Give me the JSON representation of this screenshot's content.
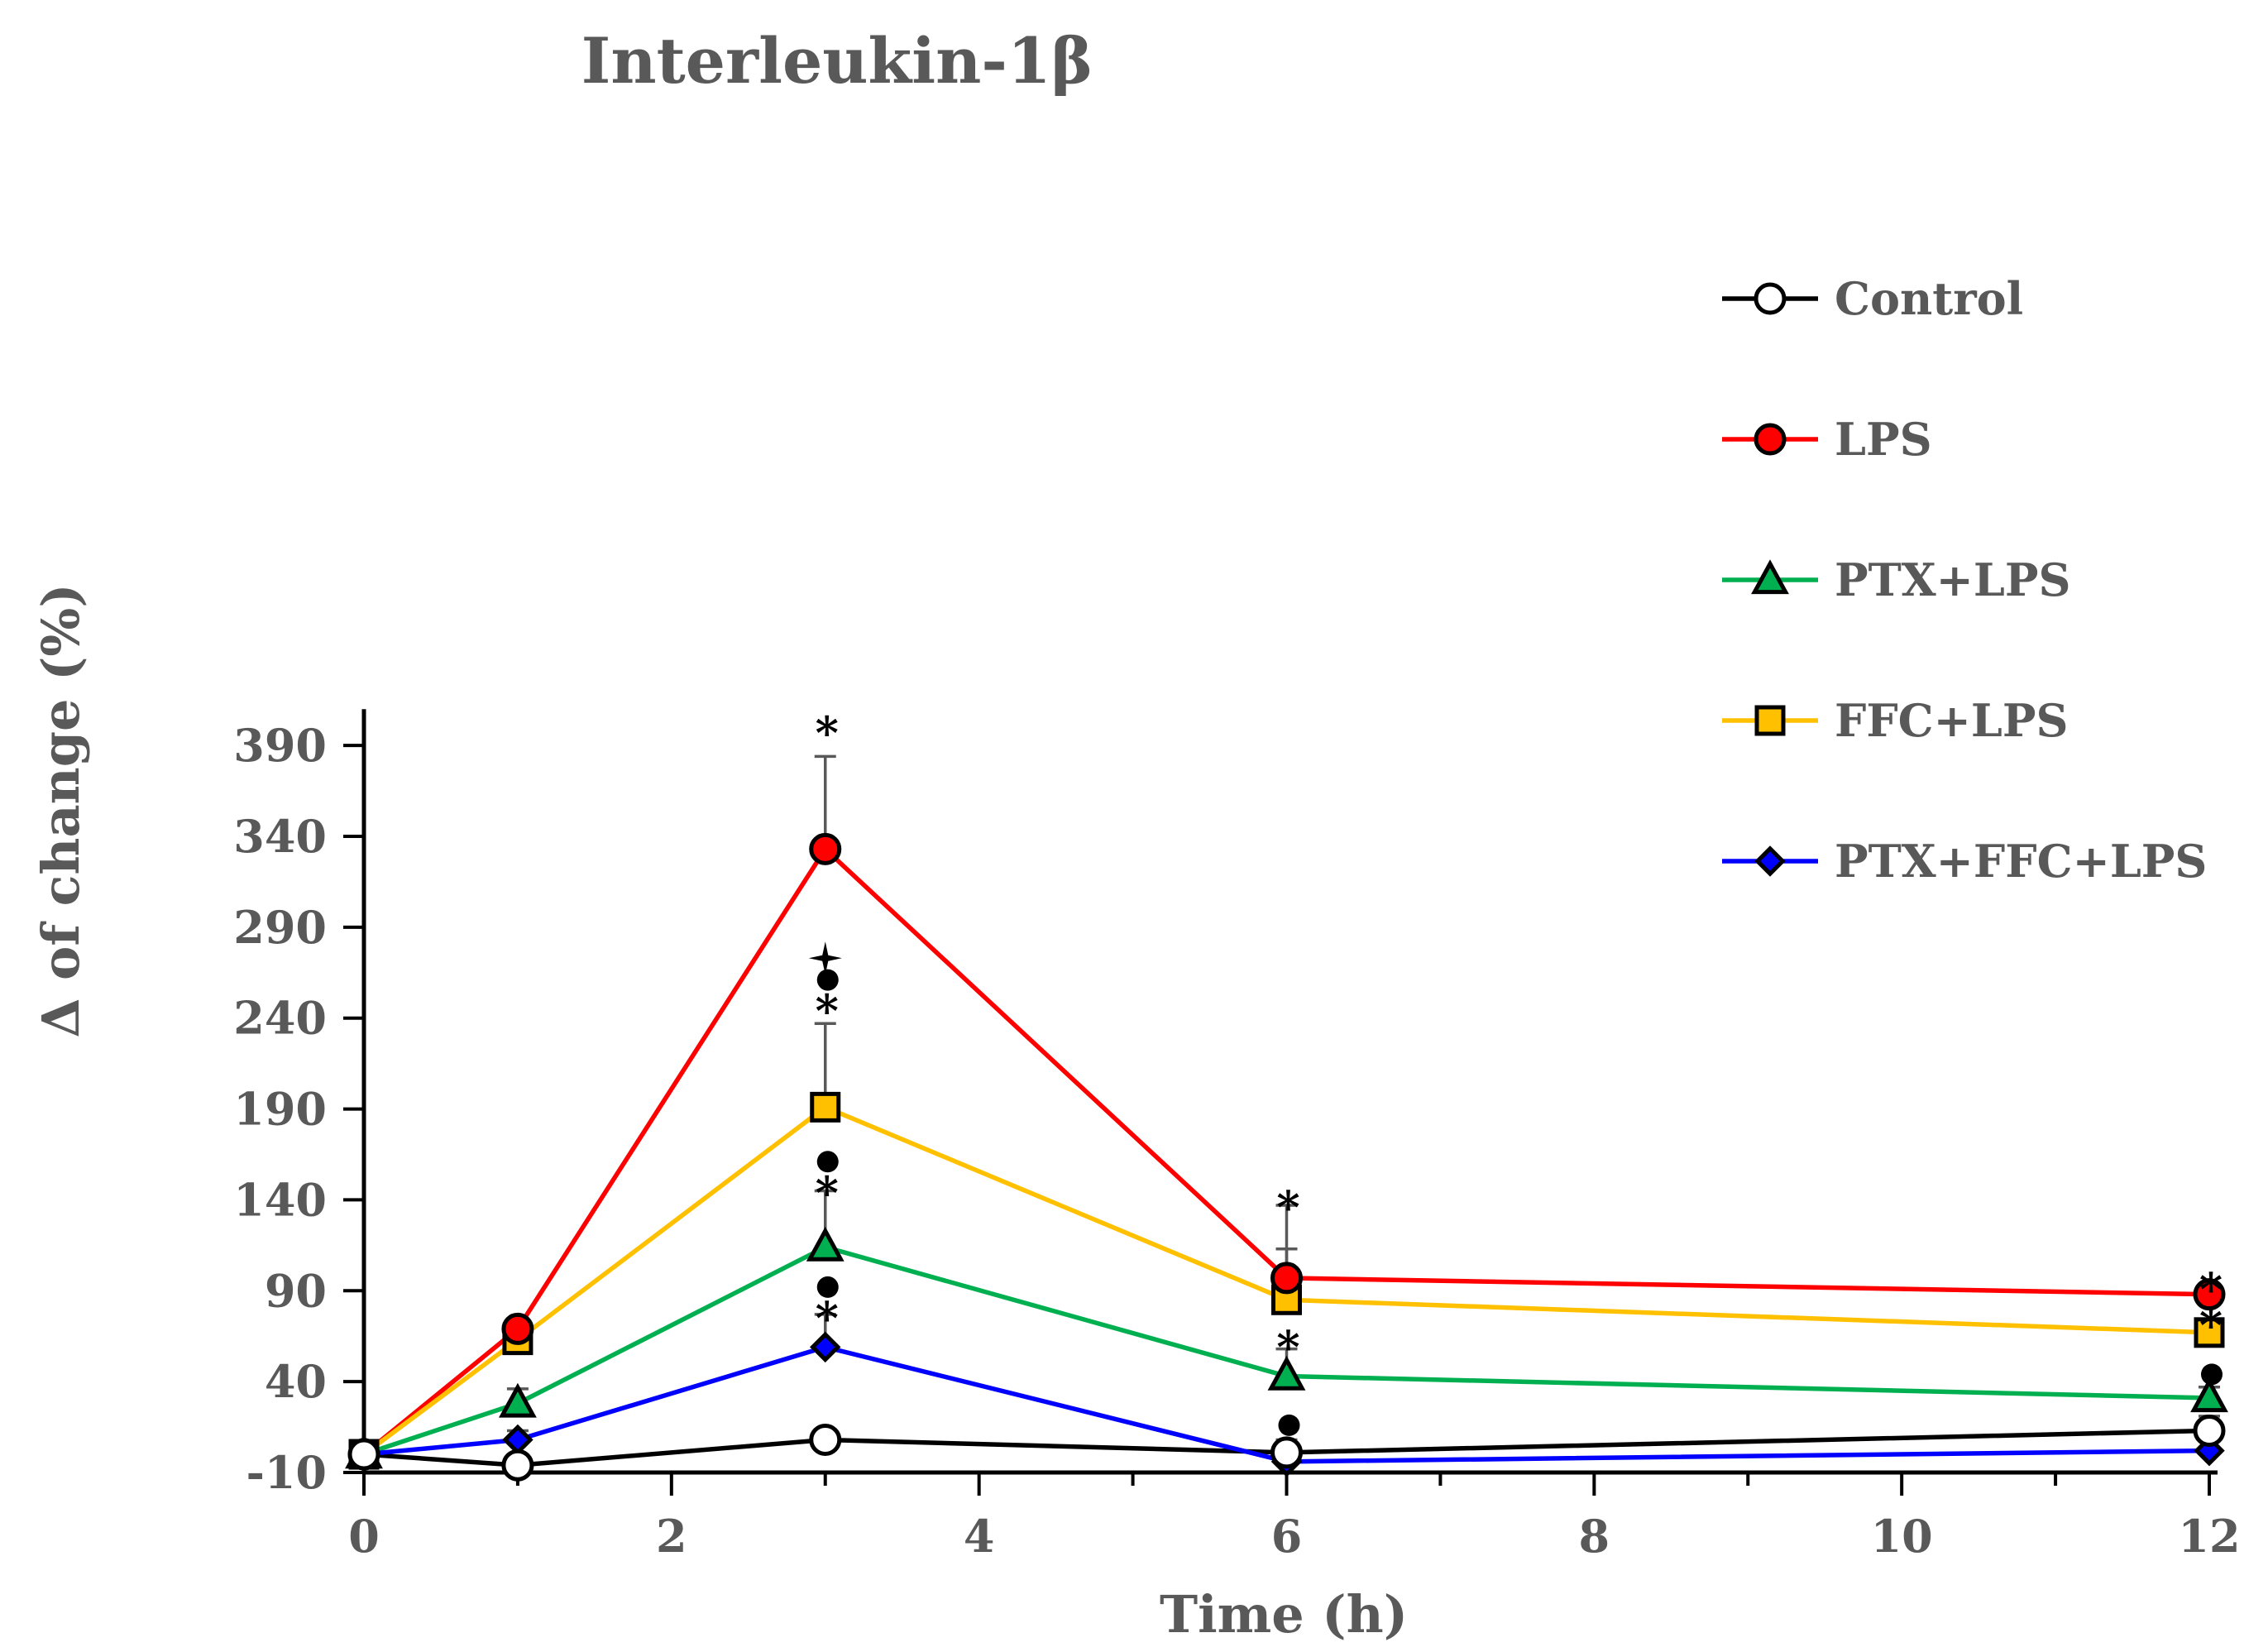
{
  "chart_data": {
    "type": "line",
    "title": "Interleukin-1β",
    "xlabel": "Time (h)",
    "ylabel": "Δ of change (%)",
    "xlim": [
      0,
      12
    ],
    "ylim": [
      -10,
      410
    ],
    "xticks": [
      0,
      2,
      4,
      6,
      8,
      10,
      12
    ],
    "yticks": [
      -10,
      40,
      90,
      140,
      190,
      240,
      290,
      340,
      390
    ],
    "grid": false,
    "legend_position": "top-right",
    "x": [
      0,
      1,
      3,
      6,
      12
    ],
    "series": [
      {
        "name": "Control",
        "color": "#000000",
        "marker": "circle",
        "marker_fill": "#ffffff",
        "values": [
          0,
          -6,
          8,
          1,
          13
        ],
        "errors": [
          0,
          0,
          0,
          7,
          8
        ]
      },
      {
        "name": "LPS",
        "color": "#ff0000",
        "marker": "circle",
        "marker_fill": "#ff0000",
        "values": [
          0,
          69,
          333,
          97,
          88
        ],
        "errors": [
          0,
          5,
          51,
          40,
          0
        ]
      },
      {
        "name": "PTX+LPS",
        "color": "#00b050",
        "marker": "triangle",
        "marker_fill": "#00b050",
        "values": [
          0,
          28,
          114,
          43,
          31
        ],
        "errors": [
          0,
          8,
          31,
          15,
          6
        ]
      },
      {
        "name": "FFC+LPS",
        "color": "#ffc000",
        "marker": "square",
        "marker_fill": "#ffc000",
        "values": [
          0,
          63,
          191,
          85,
          67
        ],
        "errors": [
          0,
          5,
          46,
          28,
          0
        ]
      },
      {
        "name": "PTX+FFC+LPS",
        "color": "#0000ff",
        "marker": "diamond",
        "marker_fill": "#0000ff",
        "values": [
          0,
          8,
          59,
          -4,
          2
        ],
        "errors": [
          0,
          5,
          18,
          0,
          0
        ]
      }
    ],
    "annotations": [
      {
        "x": 3,
        "y": 401,
        "text": "*"
      },
      {
        "x": 3,
        "y": 273,
        "text": "✦"
      },
      {
        "x": 3,
        "y": 261,
        "text": "●"
      },
      {
        "x": 3,
        "y": 248,
        "text": "*"
      },
      {
        "x": 3,
        "y": 161,
        "text": "●"
      },
      {
        "x": 3,
        "y": 148,
        "text": "*"
      },
      {
        "x": 3,
        "y": 92,
        "text": "●"
      },
      {
        "x": 3,
        "y": 79,
        "text": "*"
      },
      {
        "x": 6,
        "y": 140,
        "text": "*"
      },
      {
        "x": 6,
        "y": 63,
        "text": "*"
      },
      {
        "x": 6,
        "y": 16,
        "text": "●"
      },
      {
        "x": 12,
        "y": 95,
        "text": "*"
      },
      {
        "x": 12,
        "y": 75,
        "text": "*"
      },
      {
        "x": 12,
        "y": 44,
        "text": "●"
      }
    ]
  }
}
